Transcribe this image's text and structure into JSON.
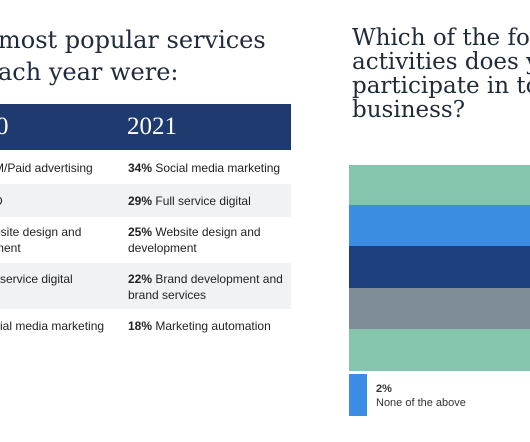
{
  "left": {
    "heading_lines": [
      "most popular services",
      "ach year were:"
    ],
    "table": {
      "col1_header": "0",
      "col2_header": "2021",
      "rows": [
        {
          "c1": "M/Paid advertising",
          "c2_pct": "34%",
          "c2_text": "Social media marketing"
        },
        {
          "c1": "D",
          "c2_pct": "29%",
          "c2_text": "Full service digital"
        },
        {
          "c1": "bsite design and\nment",
          "c2_pct": "25%",
          "c2_text": "Website design and development"
        },
        {
          "c1": "l service digital",
          "c2_pct": "22%",
          "c2_text": "Brand development and brand services"
        },
        {
          "c1": "cial media marketing",
          "c2_pct": "18%",
          "c2_text": "Marketing automation"
        }
      ]
    }
  },
  "right": {
    "heading_lines": [
      "Which of the fol",
      "activities does y",
      "participate in to",
      "business?"
    ],
    "bars": [
      {
        "color": "#86c5ad"
      },
      {
        "color": "#3a8de3"
      },
      {
        "color": "#1e3f7e"
      },
      {
        "color": "#7f8d98"
      },
      {
        "color": "#86c5ad"
      }
    ],
    "last_item": {
      "pct": "2%",
      "label": "None of the above",
      "color": "#3a8de3"
    }
  }
}
